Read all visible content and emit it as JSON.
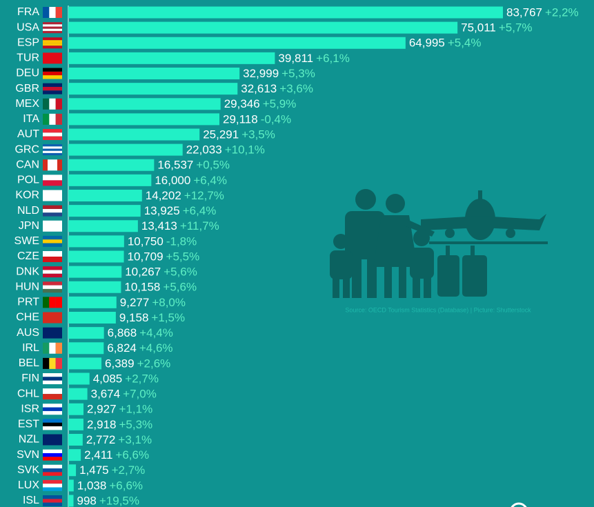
{
  "chart_data": {
    "type": "bar",
    "orientation": "horizontal",
    "categories": [
      "FRA",
      "USA",
      "ESP",
      "TUR",
      "DEU",
      "GBR",
      "MEX",
      "ITA",
      "AUT",
      "GRC",
      "CAN",
      "POL",
      "KOR",
      "NLD",
      "JPN",
      "SWE",
      "CZE",
      "DNK",
      "HUN",
      "PRT",
      "CHE",
      "AUS",
      "IRL",
      "BEL",
      "FIN",
      "CHL",
      "ISR",
      "EST",
      "NZL",
      "SVN",
      "SVK",
      "LUX",
      "ISL"
    ],
    "values": [
      83767,
      75011,
      64995,
      39811,
      32999,
      32613,
      29346,
      29118,
      25291,
      22033,
      16537,
      16000,
      14202,
      13925,
      13413,
      10750,
      10709,
      10267,
      10158,
      9277,
      9158,
      6868,
      6824,
      6389,
      4085,
      3674,
      2927,
      2918,
      2772,
      2411,
      1475,
      1038,
      998
    ],
    "value_labels": [
      "83,767",
      "75,011",
      "64,995",
      "39,811",
      "32,999",
      "32,613",
      "29,346",
      "29,118",
      "25,291",
      "22,033",
      "16,537",
      "16,000",
      "14,202",
      "13,925",
      "13,413",
      "10,750",
      "10,709",
      "10,267",
      "10,158",
      "9,277",
      "9,158",
      "6,868",
      "6,824",
      "6,389",
      "4,085",
      "3,674",
      "2,927",
      "2,918",
      "2,772",
      "2,411",
      "1,475",
      "1,038",
      "998"
    ],
    "change_labels": [
      "+2,2%",
      "+5,7%",
      "+5,4%",
      "+6,1%",
      "+5,3%",
      "+3,6%",
      "+5,9%",
      "-0,4%",
      "+3,5%",
      "+10,1%",
      "+0,5%",
      "+6,4%",
      "+12,7%",
      "+6,4%",
      "+11,7%",
      "-1,8%",
      "+5,5%",
      "+5,6%",
      "+5,6%",
      "+8,0%",
      "+1,5%",
      "+4,4%",
      "+4,6%",
      "+2,6%",
      "+2,7%",
      "+7,0%",
      "+1,1%",
      "+5,3%",
      "+3,1%",
      "+6,6%",
      "+2,7%",
      "+6,6%",
      "+19,5%"
    ],
    "color": "#21f0c6",
    "source": "Source: OECD Tourism Statistics (Database) | Picture: Shutterstock"
  }
}
